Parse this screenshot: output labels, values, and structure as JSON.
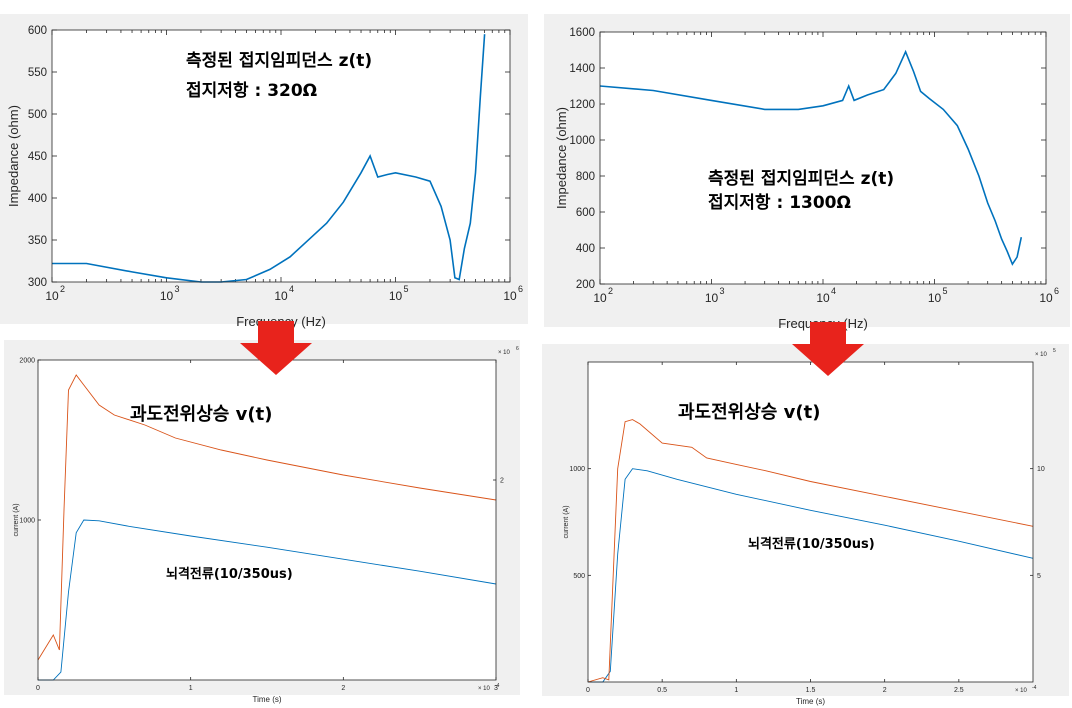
{
  "colors": {
    "blue": "#0072bd",
    "orange": "#d95319",
    "arrow": "#e8231c",
    "panel_bg": "#f0f0f0",
    "plot_bg": "#ffffff"
  },
  "chart_data": [
    {
      "id": "impedance-left",
      "type": "line",
      "title": "",
      "xlabel": "Frequency (Hz)",
      "ylabel": "Impedance (ohm)",
      "xscale": "log",
      "xlim": [
        100,
        1000000
      ],
      "ylim": [
        300,
        600
      ],
      "x_ticks": [
        100,
        1000,
        10000,
        100000,
        1000000
      ],
      "x_tick_labels": [
        "10",
        "10",
        "10",
        "10",
        "10"
      ],
      "x_tick_exponents": [
        "2",
        "3",
        "4",
        "5",
        "6"
      ],
      "y_ticks": [
        300,
        350,
        400,
        450,
        500,
        550,
        600
      ],
      "y_tick_labels": [
        "300",
        "350",
        "400",
        "450",
        "500",
        "550",
        "600"
      ],
      "annotations": [
        "측정된 접지임피던스 z(t)",
        "접지저항 : 320Ω"
      ],
      "series": [
        {
          "color": "#0072bd",
          "x": [
            100,
            200,
            500,
            1000,
            2000,
            3000,
            5000,
            8000,
            12000,
            18000,
            25000,
            35000,
            50000,
            60000,
            70000,
            85000,
            100000,
            150000,
            200000,
            250000,
            300000,
            330000,
            360000,
            400000,
            450000,
            500000,
            550000,
            600000
          ],
          "y": [
            322,
            322,
            312,
            305,
            300,
            300,
            303,
            315,
            330,
            352,
            370,
            395,
            430,
            450,
            425,
            428,
            430,
            425,
            420,
            390,
            350,
            305,
            303,
            340,
            370,
            430,
            520,
            595
          ]
        }
      ]
    },
    {
      "id": "impedance-right",
      "type": "line",
      "title": "",
      "xlabel": "Frequency (Hz)",
      "ylabel": "Impedance (ohm)",
      "xscale": "log",
      "xlim": [
        100,
        1000000
      ],
      "ylim": [
        200,
        1600
      ],
      "x_ticks": [
        100,
        1000,
        10000,
        100000,
        1000000
      ],
      "x_tick_labels": [
        "10",
        "10",
        "10",
        "10",
        "10"
      ],
      "x_tick_exponents": [
        "2",
        "3",
        "4",
        "5",
        "6"
      ],
      "y_ticks": [
        200,
        400,
        600,
        800,
        1000,
        1200,
        1400,
        1600
      ],
      "y_tick_labels": [
        "200",
        "400",
        "600",
        "800",
        "1000",
        "1200",
        "1400",
        "1600"
      ],
      "annotations": [
        "측정된 접지임피던스 z(t)",
        "접지저항 : 1300Ω"
      ],
      "series": [
        {
          "color": "#0072bd",
          "x": [
            100,
            300,
            1000,
            3000,
            6000,
            10000,
            15000,
            17000,
            19000,
            25000,
            35000,
            45000,
            55000,
            65000,
            75000,
            90000,
            120000,
            160000,
            200000,
            250000,
            300000,
            350000,
            400000,
            450000,
            500000,
            550000,
            600000
          ],
          "y": [
            1300,
            1275,
            1220,
            1170,
            1170,
            1190,
            1220,
            1300,
            1220,
            1250,
            1280,
            1370,
            1490,
            1380,
            1270,
            1230,
            1170,
            1080,
            950,
            800,
            650,
            550,
            450,
            380,
            310,
            350,
            460
          ]
        }
      ]
    },
    {
      "id": "transient-left",
      "type": "line",
      "title": "",
      "xlabel": "Time (s)",
      "ylabel": "current (A)",
      "xlim": [
        0,
        3
      ],
      "x_multiplier": "× 10",
      "x_multiplier_exp": "-4",
      "ylim": [
        0,
        2000
      ],
      "x_ticks": [
        0,
        1,
        2,
        3
      ],
      "x_tick_labels": [
        "0",
        "1",
        "2",
        "3"
      ],
      "y_ticks": [
        1000,
        2000
      ],
      "y_tick_labels": [
        "1000",
        "2000"
      ],
      "y2_ticks": [
        2
      ],
      "y2_tick_labels": [
        "2"
      ],
      "y2_multiplier": "× 10",
      "y2_multiplier_exp": "6",
      "annotations": [
        "과도전위상승 v(t)",
        "뇌격전류(10/350us)"
      ],
      "series": [
        {
          "color": "#0072bd",
          "axis": "left",
          "x": [
            0,
            0.1,
            0.15,
            0.2,
            0.25,
            0.3,
            0.4,
            0.6,
            1.0,
            1.5,
            2.0,
            2.5,
            3.0
          ],
          "y": [
            0,
            0,
            50,
            550,
            920,
            1000,
            995,
            960,
            900,
            830,
            755,
            680,
            600
          ]
        },
        {
          "color": "#d95319",
          "axis": "right",
          "x": [
            0,
            0.1,
            0.14,
            0.17,
            0.2,
            0.25,
            0.3,
            0.4,
            0.5,
            0.7,
            0.9,
            1.2,
            1.5,
            2.0,
            2.5,
            3.0
          ],
          "y": [
            0.2,
            0.45,
            0.3,
            1.7,
            2.9,
            3.05,
            2.95,
            2.75,
            2.65,
            2.55,
            2.42,
            2.3,
            2.2,
            2.05,
            1.92,
            1.8
          ]
        }
      ]
    },
    {
      "id": "transient-right",
      "type": "line",
      "title": "",
      "xlabel": "Time (s)",
      "ylabel": "current (A)",
      "xlim": [
        0,
        3
      ],
      "x_multiplier": "× 10",
      "x_multiplier_exp": "-4",
      "ylim": [
        0,
        1500
      ],
      "x_ticks": [
        0,
        0.5,
        1,
        1.5,
        2,
        2.5
      ],
      "x_tick_labels": [
        "0",
        "0.5",
        "1",
        "1.5",
        "2",
        "2.5"
      ],
      "y_ticks": [
        500,
        1000
      ],
      "y_tick_labels": [
        "500",
        "1000"
      ],
      "y2_ticks": [
        5,
        10
      ],
      "y2_tick_labels": [
        "5",
        "10"
      ],
      "y2_multiplier": "× 10",
      "y2_multiplier_exp": "5",
      "annotations": [
        "과도전위상승 v(t)",
        "뇌격전류(10/350us)"
      ],
      "series": [
        {
          "color": "#0072bd",
          "axis": "left",
          "x": [
            0,
            0.1,
            0.15,
            0.2,
            0.25,
            0.3,
            0.4,
            0.6,
            1.0,
            1.5,
            2.0,
            2.5,
            3.0
          ],
          "y": [
            0,
            0,
            50,
            600,
            950,
            1000,
            990,
            950,
            880,
            805,
            735,
            660,
            580
          ]
        },
        {
          "color": "#d95319",
          "axis": "right",
          "x": [
            0,
            0.1,
            0.14,
            0.2,
            0.25,
            0.3,
            0.35,
            0.5,
            0.7,
            0.8,
            1.0,
            1.2,
            1.5,
            2.0,
            2.5,
            3.0
          ],
          "y": [
            0,
            0.2,
            0.1,
            10,
            12.2,
            12.3,
            12.1,
            11.2,
            11,
            10.5,
            10.2,
            9.9,
            9.4,
            8.7,
            8.0,
            7.3
          ]
        }
      ]
    }
  ]
}
